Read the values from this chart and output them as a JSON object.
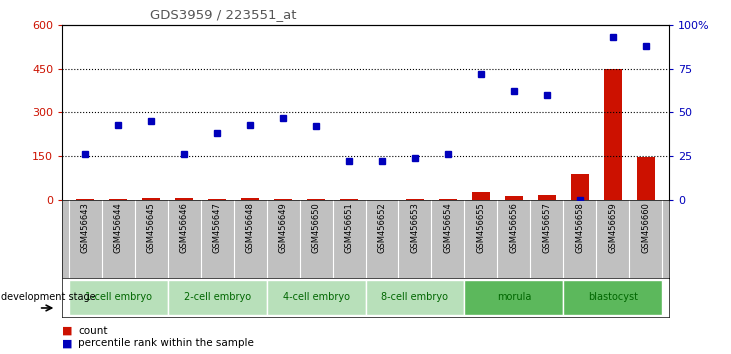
{
  "title": "GDS3959 / 223551_at",
  "samples": [
    "GSM456643",
    "GSM456644",
    "GSM456645",
    "GSM456646",
    "GSM456647",
    "GSM456648",
    "GSM456649",
    "GSM456650",
    "GSM456651",
    "GSM456652",
    "GSM456653",
    "GSM456654",
    "GSM456655",
    "GSM456656",
    "GSM456657",
    "GSM456658",
    "GSM456659",
    "GSM456660"
  ],
  "count_values": [
    2,
    4,
    6,
    8,
    5,
    8,
    5,
    3,
    2,
    1,
    2,
    3,
    28,
    15,
    18,
    90,
    450,
    148
  ],
  "percentile_values": [
    26,
    43,
    45,
    26,
    38,
    43,
    47,
    42,
    22,
    22,
    24,
    26,
    72,
    62,
    60,
    0,
    93,
    88
  ],
  "stage_groups": [
    {
      "label": "1-cell embryo",
      "start": 0,
      "end": 2,
      "color": "#b8e0ba"
    },
    {
      "label": "2-cell embryo",
      "start": 3,
      "end": 5,
      "color": "#b8e0ba"
    },
    {
      "label": "4-cell embryo",
      "start": 6,
      "end": 8,
      "color": "#b8e0ba"
    },
    {
      "label": "8-cell embryo",
      "start": 9,
      "end": 11,
      "color": "#b8e0ba"
    },
    {
      "label": "morula",
      "start": 12,
      "end": 14,
      "color": "#5cb85c"
    },
    {
      "label": "blastocyst",
      "start": 15,
      "end": 17,
      "color": "#5cb85c"
    }
  ],
  "ylim_left": [
    0,
    600
  ],
  "ylim_right": [
    0,
    100
  ],
  "yticks_left": [
    0,
    150,
    300,
    450,
    600
  ],
  "yticks_right": [
    0,
    25,
    50,
    75,
    100
  ],
  "bar_color": "#cc1100",
  "dot_color": "#0000bb",
  "sample_bg_color": "#c0c0c0",
  "stage_label_color": "#006600",
  "title_color": "#555555",
  "hline_percents": [
    25,
    50,
    75
  ]
}
